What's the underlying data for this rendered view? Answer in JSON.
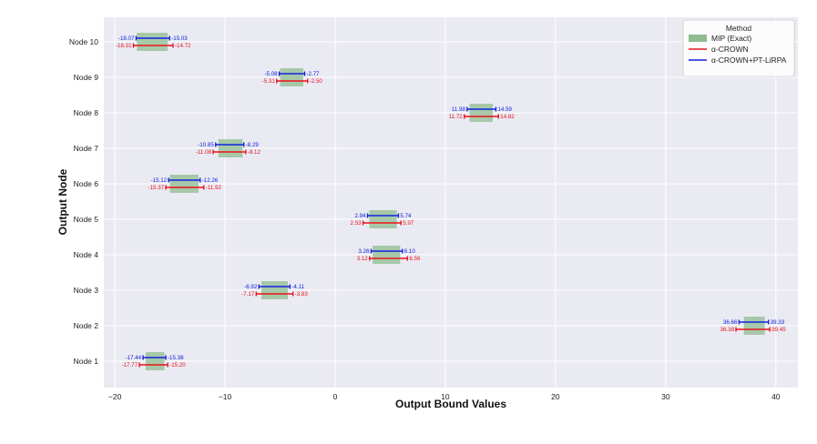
{
  "chart_data": {
    "type": "interval",
    "xlabel": "Output Bound Values",
    "ylabel": "Output Node",
    "xlim": [
      -21,
      42
    ],
    "x_ticks": [
      -20,
      -10,
      0,
      10,
      20,
      30,
      40
    ],
    "grid": true,
    "legend": {
      "title": "Method",
      "placement": "top-right",
      "entries": [
        "MIP (Exact)",
        "α-CROWN",
        "α-CROWN+PT-LiRPA"
      ]
    },
    "colors": {
      "mip": "#8fbc8f",
      "alpha_crown": "#e8141c",
      "pt_lirpa": "#1122dd",
      "plot_bg": "#eaeaf2"
    },
    "categories": [
      "Node 1",
      "Node 2",
      "Node 3",
      "Node 4",
      "Node 5",
      "Node 6",
      "Node 7",
      "Node 8",
      "Node 9",
      "Node 10"
    ],
    "series": [
      {
        "name": "α-CROWN+PT-LiRPA",
        "lower": [
          -17.44,
          36.66,
          -6.92,
          3.26,
          2.94,
          -15.12,
          -10.85,
          11.98,
          -5.08,
          -18.07
        ],
        "upper": [
          -15.38,
          39.33,
          -4.11,
          6.1,
          5.74,
          -12.26,
          -8.29,
          14.59,
          -2.77,
          -15.03
        ],
        "lower_labels": [
          "-17.44",
          "36.66",
          "-6.92",
          "3.26",
          "2.94",
          "-15.12",
          "-10.85",
          "11.98",
          "-5.08",
          "-18.07"
        ],
        "upper_labels": [
          "-15.38",
          "39.33",
          "-4.11",
          "6.10",
          "5.74",
          "-12.26",
          "-8.29",
          "14.59",
          "-2.77",
          "-15.03"
        ]
      },
      {
        "name": "α-CROWN",
        "lower": [
          -17.77,
          36.38,
          -7.17,
          3.12,
          2.53,
          -15.37,
          -11.08,
          11.72,
          -5.31,
          -18.31
        ],
        "upper": [
          -15.2,
          39.45,
          -3.83,
          6.56,
          5.97,
          -11.92,
          -8.12,
          14.82,
          -2.5,
          -14.72
        ],
        "lower_labels": [
          "-17.77",
          "36.38",
          "-7.17",
          "3.12",
          "2.53",
          "-15.37",
          "-11.08",
          "11.72",
          "-5.31",
          "-18.31"
        ],
        "upper_labels": [
          "-15.20",
          "39.45",
          "-3.83",
          "6.56",
          "5.97",
          "-11.92",
          "-8.12",
          "14.82",
          "-2.50",
          "-14.72"
        ]
      },
      {
        "name": "MIP (Exact)",
        "lower": [
          -17.2,
          37.1,
          -6.7,
          3.4,
          3.1,
          -15.0,
          -10.6,
          12.2,
          -5.0,
          -18.0
        ],
        "upper": [
          -15.5,
          39.0,
          -4.3,
          5.9,
          5.6,
          -12.4,
          -8.4,
          14.3,
          -2.9,
          -15.2
        ]
      }
    ]
  }
}
